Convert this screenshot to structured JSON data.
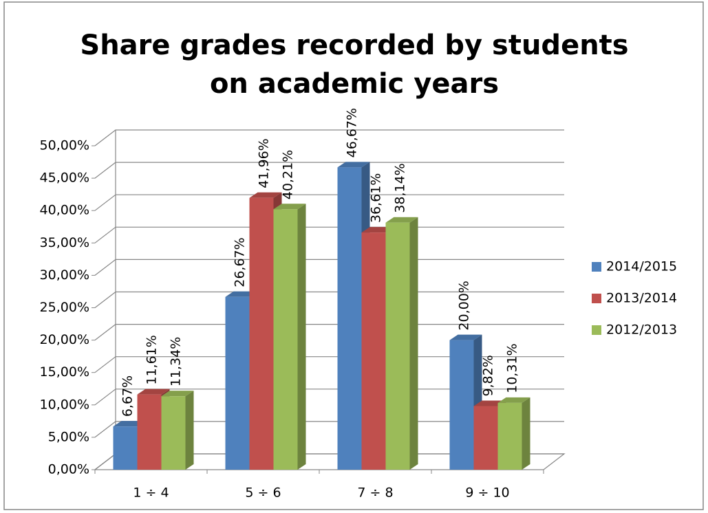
{
  "chart_data": {
    "type": "bar3d",
    "title": "Share grades recorded by students on academic years",
    "categories": [
      "1 ÷ 4",
      "5 ÷ 6",
      "7 ÷ 8",
      "9 ÷ 10"
    ],
    "series": [
      {
        "name": "2014/2015",
        "color": "#4f81bd",
        "values": [
          6.67,
          26.67,
          46.67,
          20
        ],
        "value_labels": [
          "6,67%",
          "26,67%",
          "46,67%",
          "20,00%"
        ]
      },
      {
        "name": "2013/2014",
        "color": "#c0504d",
        "values": [
          11.61,
          41.96,
          36.61,
          9.82
        ],
        "value_labels": [
          "11,61%",
          "41,96%",
          "36,61%",
          "9,82%"
        ]
      },
      {
        "name": "2012/2013",
        "color": "#9bbb59",
        "values": [
          11.34,
          40.21,
          38.14,
          10.31
        ],
        "value_labels": [
          "11,34%",
          "40,21%",
          "38,14%",
          "10,31%"
        ]
      }
    ],
    "ylim": [
      0,
      50
    ],
    "yticks": [
      {
        "value": 0,
        "label": "0,00%"
      },
      {
        "value": 5,
        "label": "5,00%"
      },
      {
        "value": 10,
        "label": "10,00%"
      },
      {
        "value": 15,
        "label": "15,00%"
      },
      {
        "value": 20,
        "label": "20,00%"
      },
      {
        "value": 25,
        "label": "25,00%"
      },
      {
        "value": 30,
        "label": "30,00%"
      },
      {
        "value": 35,
        "label": "35,00%"
      },
      {
        "value": 40,
        "label": "40,00%"
      },
      {
        "value": 45,
        "label": "45,00%"
      },
      {
        "value": 50,
        "label": "50,00%"
      }
    ],
    "grid": true,
    "legend": "right"
  }
}
